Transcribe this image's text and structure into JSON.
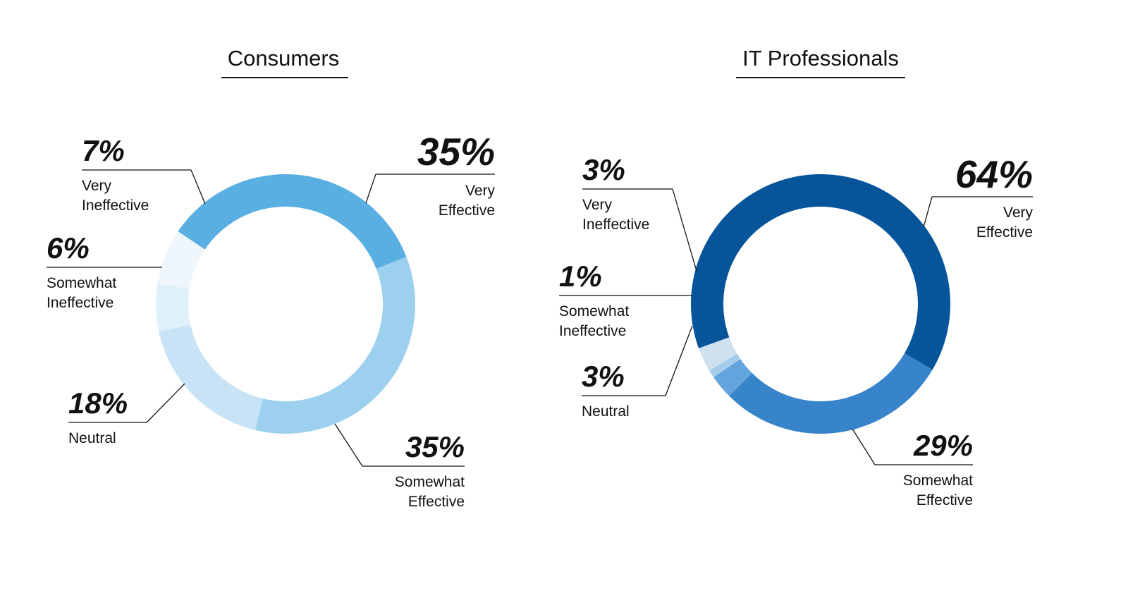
{
  "chart_data": [
    {
      "type": "donut",
      "title": "Consumers",
      "segments": [
        {
          "label": "Very Effective",
          "label_lines": [
            "Very",
            "Effective"
          ],
          "value": 35,
          "value_text": "35%",
          "color": "#5aafe2"
        },
        {
          "label": "Somewhat Effective",
          "label_lines": [
            "Somewhat",
            "Effective"
          ],
          "value": 35,
          "value_text": "35%",
          "color": "#9dd0ef"
        },
        {
          "label": "Neutral",
          "label_lines": [
            "Neutral"
          ],
          "value": 18,
          "value_text": "18%",
          "color": "#c8e3f6"
        },
        {
          "label": "Somewhat Ineffective",
          "label_lines": [
            "Somewhat",
            "Ineffective"
          ],
          "value": 6,
          "value_text": "6%",
          "color": "#e0f0fb"
        },
        {
          "label": "Very Ineffective",
          "label_lines": [
            "Very",
            "Ineffective"
          ],
          "value": 7,
          "value_text": "7%",
          "color": "#eff7fd"
        }
      ]
    },
    {
      "type": "donut",
      "title": "IT Professionals",
      "segments": [
        {
          "label": "Very Effective",
          "label_lines": [
            "Very",
            "Effective"
          ],
          "value": 64,
          "value_text": "64%",
          "color": "#06549a"
        },
        {
          "label": "Somewhat Effective",
          "label_lines": [
            "Somewhat",
            "Effective"
          ],
          "value": 29,
          "value_text": "29%",
          "color": "#3784cb"
        },
        {
          "label": "Neutral",
          "label_lines": [
            "Neutral"
          ],
          "value": 3,
          "value_text": "3%",
          "color": "#62a4dc"
        },
        {
          "label": "Somewhat Ineffective",
          "label_lines": [
            "Somewhat",
            "Ineffective"
          ],
          "value": 1,
          "value_text": "1%",
          "color": "#a6cdec"
        },
        {
          "label": "Very Ineffective",
          "label_lines": [
            "Very",
            "Ineffective"
          ],
          "value": 3,
          "value_text": "3%",
          "color": "#cfe1ef"
        }
      ]
    }
  ]
}
